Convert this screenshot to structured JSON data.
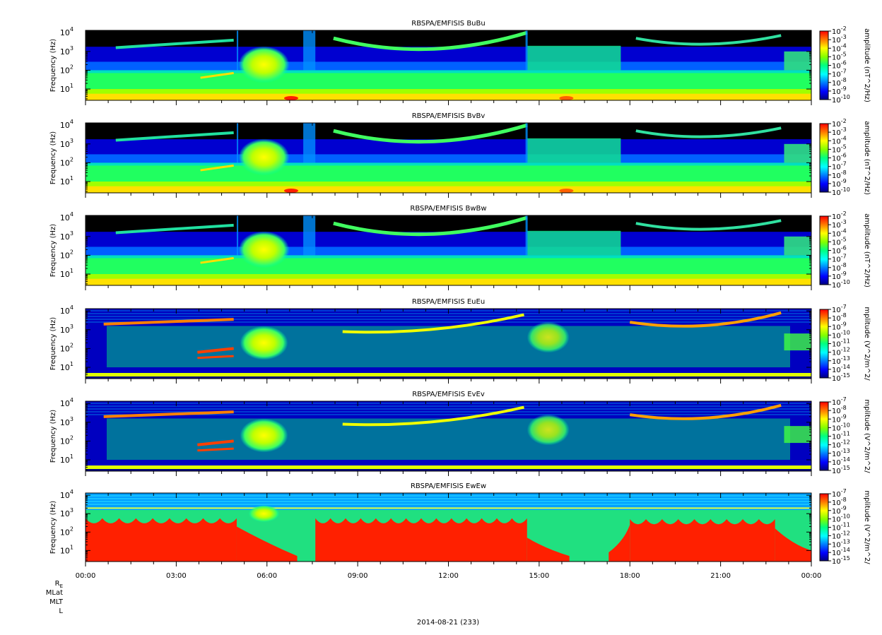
{
  "chart_data": [
    {
      "type": "heatmap",
      "title": "RBSPA/EMFISIS  BuBu",
      "ylabel": "Frequency (Hz)",
      "y_scale": "log",
      "yticks": [
        {
          "m": "10",
          "e": "1"
        },
        {
          "m": "10",
          "e": "2"
        },
        {
          "m": "10",
          "e": "3"
        },
        {
          "m": "10",
          "e": "4"
        }
      ],
      "colorbar_label": "amplitude (nT^2/Hz)",
      "colorbar_ticks": [
        "-2",
        "-3",
        "-4",
        "-5",
        "-6",
        "-7",
        "-8",
        "-9",
        "-10"
      ],
      "colorbar_range": [
        -10,
        -2
      ]
    },
    {
      "type": "heatmap",
      "title": "RBSPA/EMFISIS  BvBv",
      "ylabel": "Frequency (Hz)",
      "y_scale": "log",
      "yticks": [
        {
          "m": "10",
          "e": "1"
        },
        {
          "m": "10",
          "e": "2"
        },
        {
          "m": "10",
          "e": "3"
        },
        {
          "m": "10",
          "e": "4"
        }
      ],
      "colorbar_label": "amplitude (nT^2/Hz)",
      "colorbar_ticks": [
        "-2",
        "-3",
        "-4",
        "-5",
        "-6",
        "-7",
        "-8",
        "-9",
        "-10"
      ],
      "colorbar_range": [
        -10,
        -2
      ]
    },
    {
      "type": "heatmap",
      "title": "RBSPA/EMFISIS  BwBw",
      "ylabel": "Frequency (Hz)",
      "y_scale": "log",
      "yticks": [
        {
          "m": "10",
          "e": "1"
        },
        {
          "m": "10",
          "e": "2"
        },
        {
          "m": "10",
          "e": "3"
        },
        {
          "m": "10",
          "e": "4"
        }
      ],
      "colorbar_label": "amplitude (nT^2/Hz)",
      "colorbar_ticks": [
        "-2",
        "-3",
        "-4",
        "-5",
        "-6",
        "-7",
        "-8",
        "-9",
        "-10"
      ],
      "colorbar_range": [
        -10,
        -2
      ]
    },
    {
      "type": "heatmap",
      "title": "RBSPA/EMFISIS  EuEu",
      "ylabel": "Frequency (Hz)",
      "y_scale": "log",
      "yticks": [
        {
          "m": "10",
          "e": "1"
        },
        {
          "m": "10",
          "e": "2"
        },
        {
          "m": "10",
          "e": "3"
        },
        {
          "m": "10",
          "e": "4"
        }
      ],
      "colorbar_label": "mplitude (V^2/m^2/",
      "colorbar_ticks": [
        "-7",
        "-8",
        "-9",
        "-10",
        "-11",
        "-12",
        "-13",
        "-14",
        "-15"
      ],
      "colorbar_range": [
        -15,
        -7
      ]
    },
    {
      "type": "heatmap",
      "title": "RBSPA/EMFISIS  EvEv",
      "ylabel": "Frequency (Hz)",
      "y_scale": "log",
      "yticks": [
        {
          "m": "10",
          "e": "1"
        },
        {
          "m": "10",
          "e": "2"
        },
        {
          "m": "10",
          "e": "3"
        },
        {
          "m": "10",
          "e": "4"
        }
      ],
      "colorbar_label": "mplitude (V^2/m^2/",
      "colorbar_ticks": [
        "-7",
        "-8",
        "-9",
        "-10",
        "-11",
        "-12",
        "-13",
        "-14",
        "-15"
      ],
      "colorbar_range": [
        -15,
        -7
      ]
    },
    {
      "type": "heatmap",
      "title": "RBSPA/EMFISIS  EwEw",
      "ylabel": "Frequency (Hz)",
      "y_scale": "log",
      "yticks": [
        {
          "m": "10",
          "e": "1"
        },
        {
          "m": "10",
          "e": "2"
        },
        {
          "m": "10",
          "e": "3"
        },
        {
          "m": "10",
          "e": "4"
        }
      ],
      "colorbar_label": "mplitude (V^2/m^2/",
      "colorbar_ticks": [
        "-7",
        "-8",
        "-9",
        "-10",
        "-11",
        "-12",
        "-13",
        "-14",
        "-15"
      ],
      "colorbar_range": [
        -15,
        -7
      ]
    }
  ],
  "x_axis": {
    "tick_labels": [
      "00:00",
      "03:00",
      "06:00",
      "09:00",
      "12:00",
      "15:00",
      "18:00",
      "21:00",
      "00:00"
    ],
    "range_hours": [
      0,
      24
    ],
    "minor_ticks_per_major": 4
  },
  "ephemeris_labels": [
    {
      "main": "R",
      "sub": "E"
    },
    {
      "main": "MLat",
      "sub": ""
    },
    {
      "main": "MLT",
      "sub": ""
    },
    {
      "main": "L",
      "sub": ""
    }
  ],
  "date_label": "2014-08-21 (233)",
  "colormap": [
    "#000080",
    "#0000ff",
    "#0080ff",
    "#00ffff",
    "#00ff80",
    "#80ff00",
    "#ffff00",
    "#ff8000",
    "#ff0000"
  ],
  "colors": {
    "no_data": "#000000",
    "axis": "#000000",
    "background": "#ffffff"
  }
}
